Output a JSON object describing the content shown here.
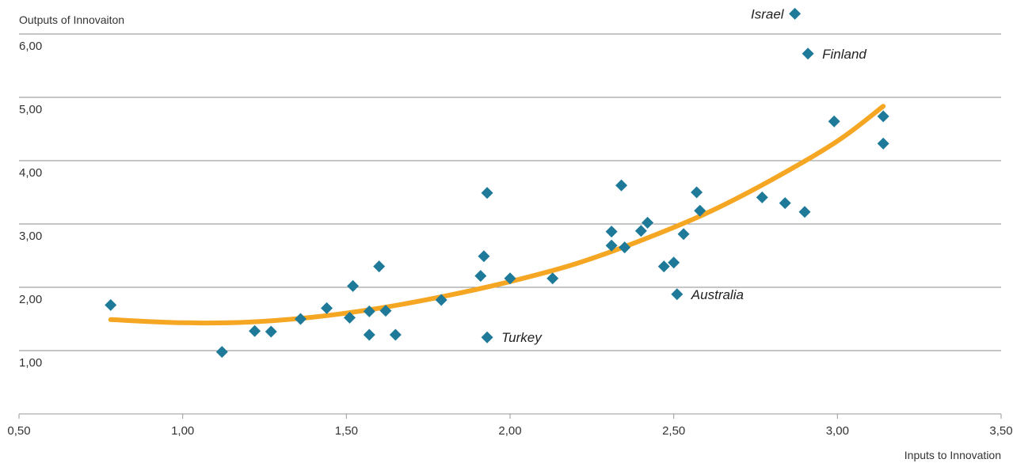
{
  "chart_data": {
    "type": "scatter",
    "ylabel": "Outputs of Innovaiton",
    "xlabel": "Inputs to Innovation",
    "xlim": [
      0.5,
      3.5
    ],
    "ylim": [
      0.5,
      6.0
    ],
    "x_ticks": [
      0.5,
      1.0,
      1.5,
      2.0,
      2.5,
      3.0,
      3.5
    ],
    "x_tick_labels": [
      "0,50",
      "1,00",
      "1,50",
      "2,00",
      "2,50",
      "3,00",
      "3,50"
    ],
    "y_ticks": [
      1.0,
      2.0,
      3.0,
      4.0,
      5.0,
      6.0
    ],
    "y_tick_labels": [
      "1,00",
      "2,00",
      "3,00",
      "4,00",
      "5,00",
      "6,00"
    ],
    "grid": "horizontal",
    "marker": "diamond",
    "marker_color": "#1F7A99",
    "trend_color": "#F5A623",
    "points": [
      {
        "x": 0.78,
        "y": 1.72
      },
      {
        "x": 1.12,
        "y": 0.98
      },
      {
        "x": 1.22,
        "y": 1.31
      },
      {
        "x": 1.27,
        "y": 1.3
      },
      {
        "x": 1.36,
        "y": 1.5
      },
      {
        "x": 1.44,
        "y": 1.67
      },
      {
        "x": 1.51,
        "y": 1.52
      },
      {
        "x": 1.52,
        "y": 2.02
      },
      {
        "x": 1.57,
        "y": 1.25
      },
      {
        "x": 1.57,
        "y": 1.62
      },
      {
        "x": 1.6,
        "y": 2.33
      },
      {
        "x": 1.62,
        "y": 1.63
      },
      {
        "x": 1.65,
        "y": 1.25
      },
      {
        "x": 1.79,
        "y": 1.8
      },
      {
        "x": 1.91,
        "y": 2.18
      },
      {
        "x": 1.92,
        "y": 2.49
      },
      {
        "x": 1.93,
        "y": 3.49
      },
      {
        "x": 1.93,
        "y": 1.21
      },
      {
        "x": 2.0,
        "y": 2.14
      },
      {
        "x": 2.13,
        "y": 2.14
      },
      {
        "x": 2.31,
        "y": 2.88
      },
      {
        "x": 2.31,
        "y": 2.66
      },
      {
        "x": 2.34,
        "y": 3.61
      },
      {
        "x": 2.35,
        "y": 2.63
      },
      {
        "x": 2.4,
        "y": 2.89
      },
      {
        "x": 2.42,
        "y": 3.02
      },
      {
        "x": 2.47,
        "y": 2.33
      },
      {
        "x": 2.5,
        "y": 2.39
      },
      {
        "x": 2.51,
        "y": 1.89
      },
      {
        "x": 2.53,
        "y": 2.84
      },
      {
        "x": 2.57,
        "y": 3.5
      },
      {
        "x": 2.58,
        "y": 3.21
      },
      {
        "x": 2.77,
        "y": 3.42
      },
      {
        "x": 2.84,
        "y": 3.33
      },
      {
        "x": 2.9,
        "y": 3.19
      },
      {
        "x": 2.99,
        "y": 4.62
      },
      {
        "x": 3.14,
        "y": 4.7
      },
      {
        "x": 3.14,
        "y": 4.27
      },
      {
        "x": 2.87,
        "y": 6.32
      },
      {
        "x": 2.91,
        "y": 5.69
      }
    ],
    "annotations": [
      {
        "text": "Israel",
        "x": 2.87,
        "y": 6.32,
        "anchor": "left"
      },
      {
        "text": "Finland",
        "x": 2.91,
        "y": 5.69,
        "anchor": "right"
      },
      {
        "text": "Australia",
        "x": 2.51,
        "y": 1.89,
        "anchor": "right"
      },
      {
        "text": "Turkey",
        "x": 1.93,
        "y": 1.21,
        "anchor": "right"
      }
    ],
    "trendline": {
      "type": "polynomial",
      "x_range": [
        0.78,
        3.14
      ],
      "points": [
        {
          "x": 0.78,
          "y": 1.49
        },
        {
          "x": 1.0,
          "y": 1.44
        },
        {
          "x": 1.2,
          "y": 1.45
        },
        {
          "x": 1.4,
          "y": 1.53
        },
        {
          "x": 1.6,
          "y": 1.67
        },
        {
          "x": 1.8,
          "y": 1.86
        },
        {
          "x": 2.0,
          "y": 2.09
        },
        {
          "x": 2.2,
          "y": 2.37
        },
        {
          "x": 2.4,
          "y": 2.74
        },
        {
          "x": 2.6,
          "y": 3.17
        },
        {
          "x": 2.8,
          "y": 3.7
        },
        {
          "x": 3.0,
          "y": 4.31
        },
        {
          "x": 3.14,
          "y": 4.86
        }
      ]
    }
  }
}
